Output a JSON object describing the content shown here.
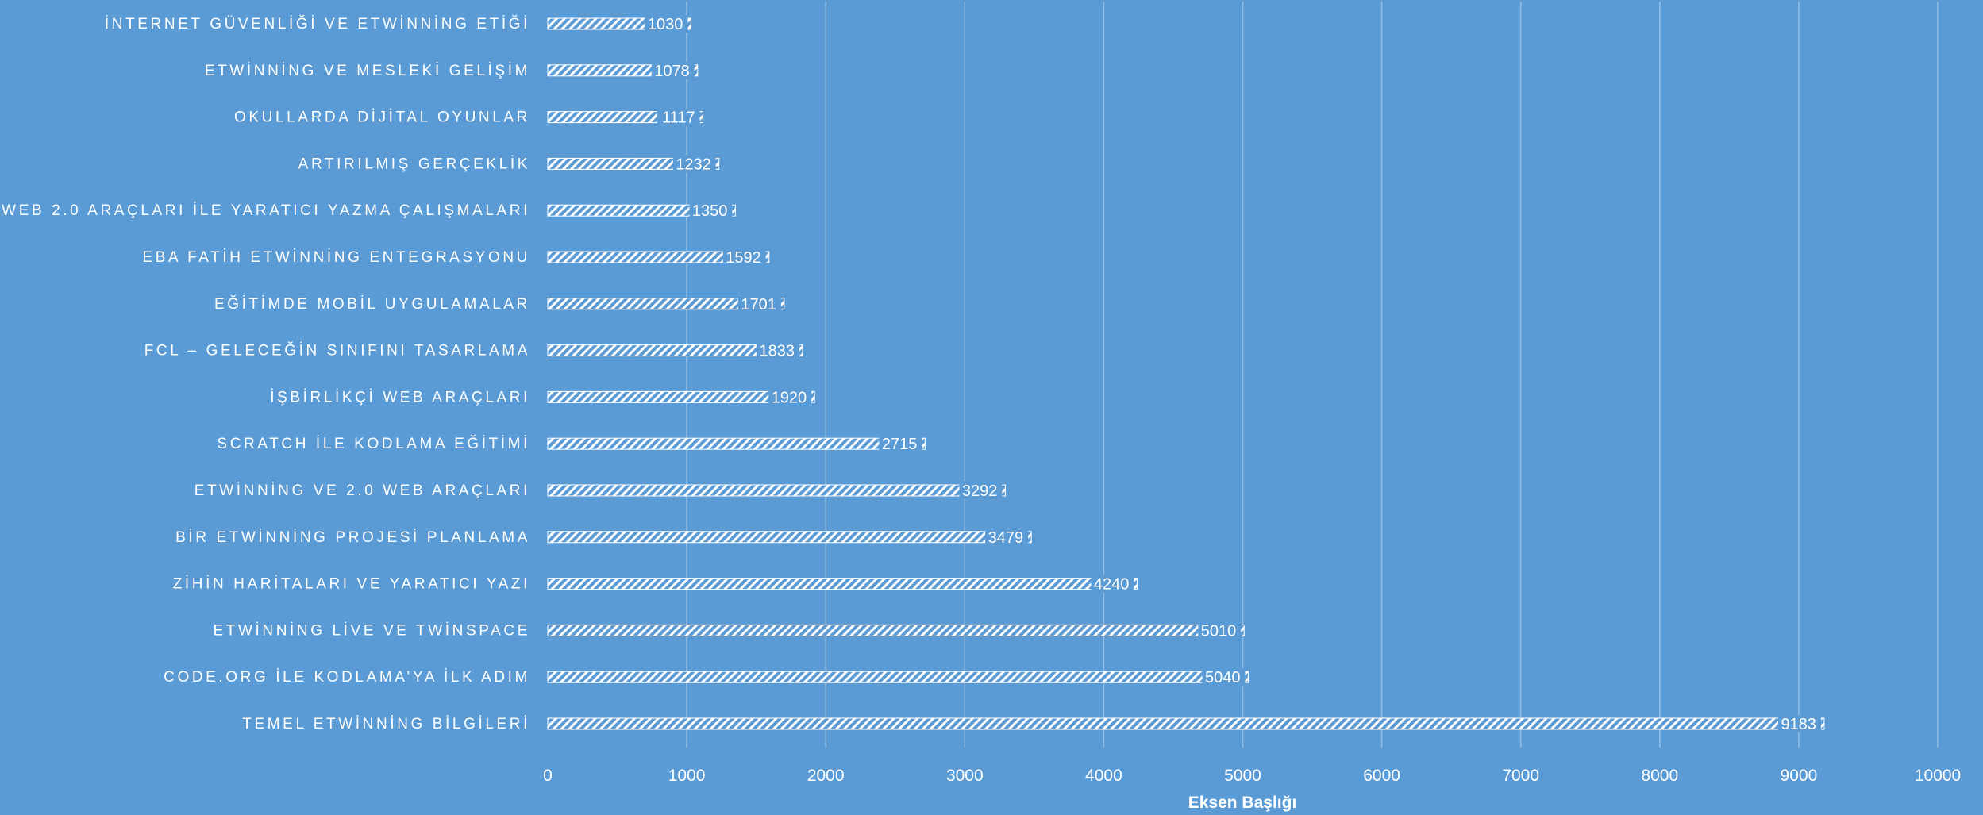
{
  "colors": {
    "background": "#5b9bd5",
    "bar_stripe": "#ffffff",
    "bar_base": "#5b9bd5",
    "text": "#ffffff"
  },
  "chart_data": {
    "type": "bar",
    "orientation": "horizontal",
    "pattern": "diagonal-hatch",
    "categories": [
      "İNTERNET GÜVENLİĞİ VE ETWİNNİNG ETİĞİ",
      "ETWİNNİNG VE MESLEKİ GELİŞİM",
      "OKULLARDA DİJİTAL OYUNLAR",
      "ARTIRILMIŞ GERÇEKLİK",
      "WEB 2.0 ARAÇLARI İLE YARATICI YAZMA ÇALIŞMALARI",
      "EBA FATİH ETWİNNİNG ENTEGRASYONU",
      "EĞİTİMDE MOBİL UYGULAMALAR",
      "FCL – GELECEĞİN SINIFINI TASARLAMA",
      "İŞBİRLİKÇİ WEB ARAÇLARI",
      "SCRATCH İLE KODLAMA EĞİTİMİ",
      "ETWİNNİNG VE 2.0 WEB ARAÇLARI",
      "BİR ETWİNNİNG PROJESİ PLANLAMA",
      "ZİHİN HARİTALARI VE YARATICI YAZI",
      "ETWİNNİNG LİVE VE TWİNSPACE",
      "CODE.ORG İLE KODLAMA’YA İLK ADIM",
      "TEMEL ETWİNNİNG BİLGİLERİ"
    ],
    "values": [
      1030,
      1078,
      1117,
      1232,
      1350,
      1592,
      1701,
      1833,
      1920,
      2715,
      3292,
      3479,
      4240,
      5010,
      5040,
      9183
    ],
    "data_labels": [
      "1030",
      "1078",
      "1117",
      "1232",
      "1350",
      "1592",
      "1701",
      "1833",
      "1920",
      "2715",
      "3292",
      "3479",
      "4240",
      "5010",
      "5040",
      "9183"
    ],
    "xlim": [
      0,
      10000
    ],
    "x_ticks": [
      0,
      1000,
      2000,
      3000,
      4000,
      5000,
      6000,
      7000,
      8000,
      9000,
      10000
    ],
    "x_tick_labels": [
      "0",
      "1000",
      "2000",
      "3000",
      "4000",
      "5000",
      "6000",
      "7000",
      "8000",
      "9000",
      "10000"
    ],
    "xlabel": "Eksen Başlığı",
    "title": "",
    "ylabel": "",
    "grid": "vertical",
    "legend": "none"
  }
}
